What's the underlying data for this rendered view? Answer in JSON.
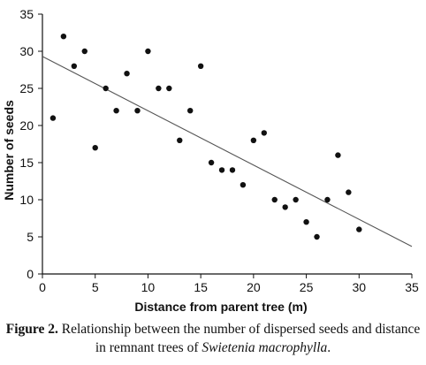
{
  "chart_data": {
    "type": "scatter",
    "xlabel": "Distance from parent tree (m)",
    "ylabel": "Number of seeds",
    "xlim": [
      0,
      35
    ],
    "ylim": [
      0,
      35
    ],
    "xticks": [
      "0",
      "5",
      "10",
      "15",
      "20",
      "25",
      "30",
      "35"
    ],
    "yticks": [
      "0",
      "5",
      "10",
      "15",
      "20",
      "25",
      "30",
      "35"
    ],
    "grid": false,
    "points": [
      {
        "x": 1,
        "y": 21
      },
      {
        "x": 2,
        "y": 32
      },
      {
        "x": 3,
        "y": 28
      },
      {
        "x": 4,
        "y": 30
      },
      {
        "x": 5,
        "y": 17
      },
      {
        "x": 6,
        "y": 25
      },
      {
        "x": 7,
        "y": 22
      },
      {
        "x": 8,
        "y": 27
      },
      {
        "x": 9,
        "y": 22
      },
      {
        "x": 10,
        "y": 30
      },
      {
        "x": 11,
        "y": 25
      },
      {
        "x": 12,
        "y": 25
      },
      {
        "x": 13,
        "y": 18
      },
      {
        "x": 14,
        "y": 22
      },
      {
        "x": 15,
        "y": 28
      },
      {
        "x": 16,
        "y": 15
      },
      {
        "x": 17,
        "y": 14
      },
      {
        "x": 18,
        "y": 14
      },
      {
        "x": 19,
        "y": 12
      },
      {
        "x": 20,
        "y": 18
      },
      {
        "x": 21,
        "y": 19
      },
      {
        "x": 22,
        "y": 10
      },
      {
        "x": 23,
        "y": 9
      },
      {
        "x": 24,
        "y": 10
      },
      {
        "x": 25,
        "y": 7
      },
      {
        "x": 26,
        "y": 5
      },
      {
        "x": 27,
        "y": 10
      },
      {
        "x": 28,
        "y": 16
      },
      {
        "x": 29,
        "y": 11
      },
      {
        "x": 30,
        "y": 6
      }
    ],
    "trendline": {
      "x": [
        0,
        35
      ],
      "y": [
        29.3,
        3.7
      ]
    },
    "colors": {
      "points": "#111111",
      "trendline": "#555555",
      "axes": "#111111"
    }
  },
  "caption": {
    "label": "Figure 2.",
    "text": " Relationship between the number of dispersed seeds and distance in remnant trees of ",
    "species": "Swietenia macrophylla",
    "end": "."
  }
}
